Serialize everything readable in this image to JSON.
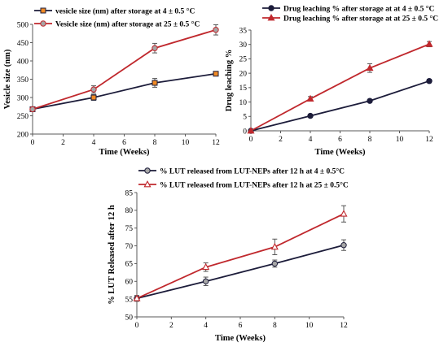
{
  "chart_data": [
    {
      "type": "line",
      "title": "",
      "xlabel": "Time (Weeks)",
      "ylabel": "Vesicle size (nm)",
      "x": [
        0,
        4,
        8,
        12
      ],
      "xlim": [
        0,
        12
      ],
      "xticks": [
        "0",
        "2",
        "4",
        "6",
        "8",
        "10",
        "12"
      ],
      "ylim": [
        200,
        500
      ],
      "yticks": [
        "200",
        "250",
        "300",
        "350",
        "400",
        "450",
        "500"
      ],
      "grid": false,
      "legend_position": "top-left",
      "series": [
        {
          "name": "vesicle size (nm) after storage at 4 ± 0.5 °C",
          "values": [
            268,
            300,
            340,
            365
          ],
          "errors": [
            5,
            8,
            12,
            4
          ],
          "color": "#1c1c3a",
          "marker": "square",
          "marker_color": "#f08a24"
        },
        {
          "name": "Vesicle size (nm) after storage at 25 ± 0.5 °C",
          "values": [
            268,
            322,
            435,
            485
          ],
          "errors": [
            5,
            10,
            13,
            14
          ],
          "color": "#c0282d",
          "marker": "circle",
          "marker_color": "#a6a6a6"
        }
      ]
    },
    {
      "type": "line",
      "title": "",
      "xlabel": "Time (Weeks)",
      "ylabel": "Drug leaching %",
      "x": [
        0,
        4,
        8,
        12
      ],
      "xlim": [
        0,
        12
      ],
      "xticks": [
        "0",
        "2",
        "4",
        "6",
        "8",
        "10",
        "12"
      ],
      "ylim": [
        0,
        35
      ],
      "yticks": [
        "0",
        "5",
        "10",
        "15",
        "20",
        "25",
        "30",
        "35"
      ],
      "grid": false,
      "legend_position": "top-left",
      "series": [
        {
          "name": "Drug leaching % after storage at at 4 ± 0.5 °C",
          "values": [
            0,
            5.2,
            10.4,
            17.3
          ],
          "errors": [
            0.2,
            0.3,
            0.4,
            0.6
          ],
          "color": "#1c1c3a",
          "marker": "circle",
          "marker_color": "#1c1c3a"
        },
        {
          "name": "Drug leaching  % after storage at at 25 ± 0.5 °C",
          "values": [
            0,
            11.1,
            21.8,
            30.1
          ],
          "errors": [
            0.2,
            0.8,
            1.5,
            0.9
          ],
          "color": "#c0282d",
          "marker": "triangle",
          "marker_color": "#c0282d"
        }
      ]
    },
    {
      "type": "line",
      "title": "",
      "xlabel": "Time (Weeks)",
      "ylabel": "% LUT Released after 12 h",
      "x": [
        0,
        4,
        8,
        12
      ],
      "xlim": [
        0,
        12
      ],
      "xticks": [
        "0",
        "2",
        "4",
        "6",
        "8",
        "10",
        "12"
      ],
      "ylim": [
        50,
        85
      ],
      "yticks": [
        "50",
        "55",
        "60",
        "65",
        "70",
        "75",
        "80",
        "85"
      ],
      "grid": false,
      "legend_position": "top-center",
      "series": [
        {
          "name": "% LUT released from  LUT-NEPs after 12 h at 4 ± 0.5°C",
          "values": [
            55.2,
            60,
            65,
            70.2
          ],
          "errors": [
            0.8,
            1.2,
            1,
            1.5
          ],
          "color": "#1c1c3a",
          "marker": "circle",
          "marker_color": "#a6a6a6"
        },
        {
          "name": "% LUT released from  LUT-NEPs after 12 h at 25 ± 0.5°C",
          "values": [
            55.2,
            64,
            69.7,
            79
          ],
          "errors": [
            0.8,
            1.2,
            2.2,
            2.3
          ],
          "color": "#c0282d",
          "marker": "triangle",
          "marker_color": "#ffffff"
        }
      ]
    }
  ]
}
